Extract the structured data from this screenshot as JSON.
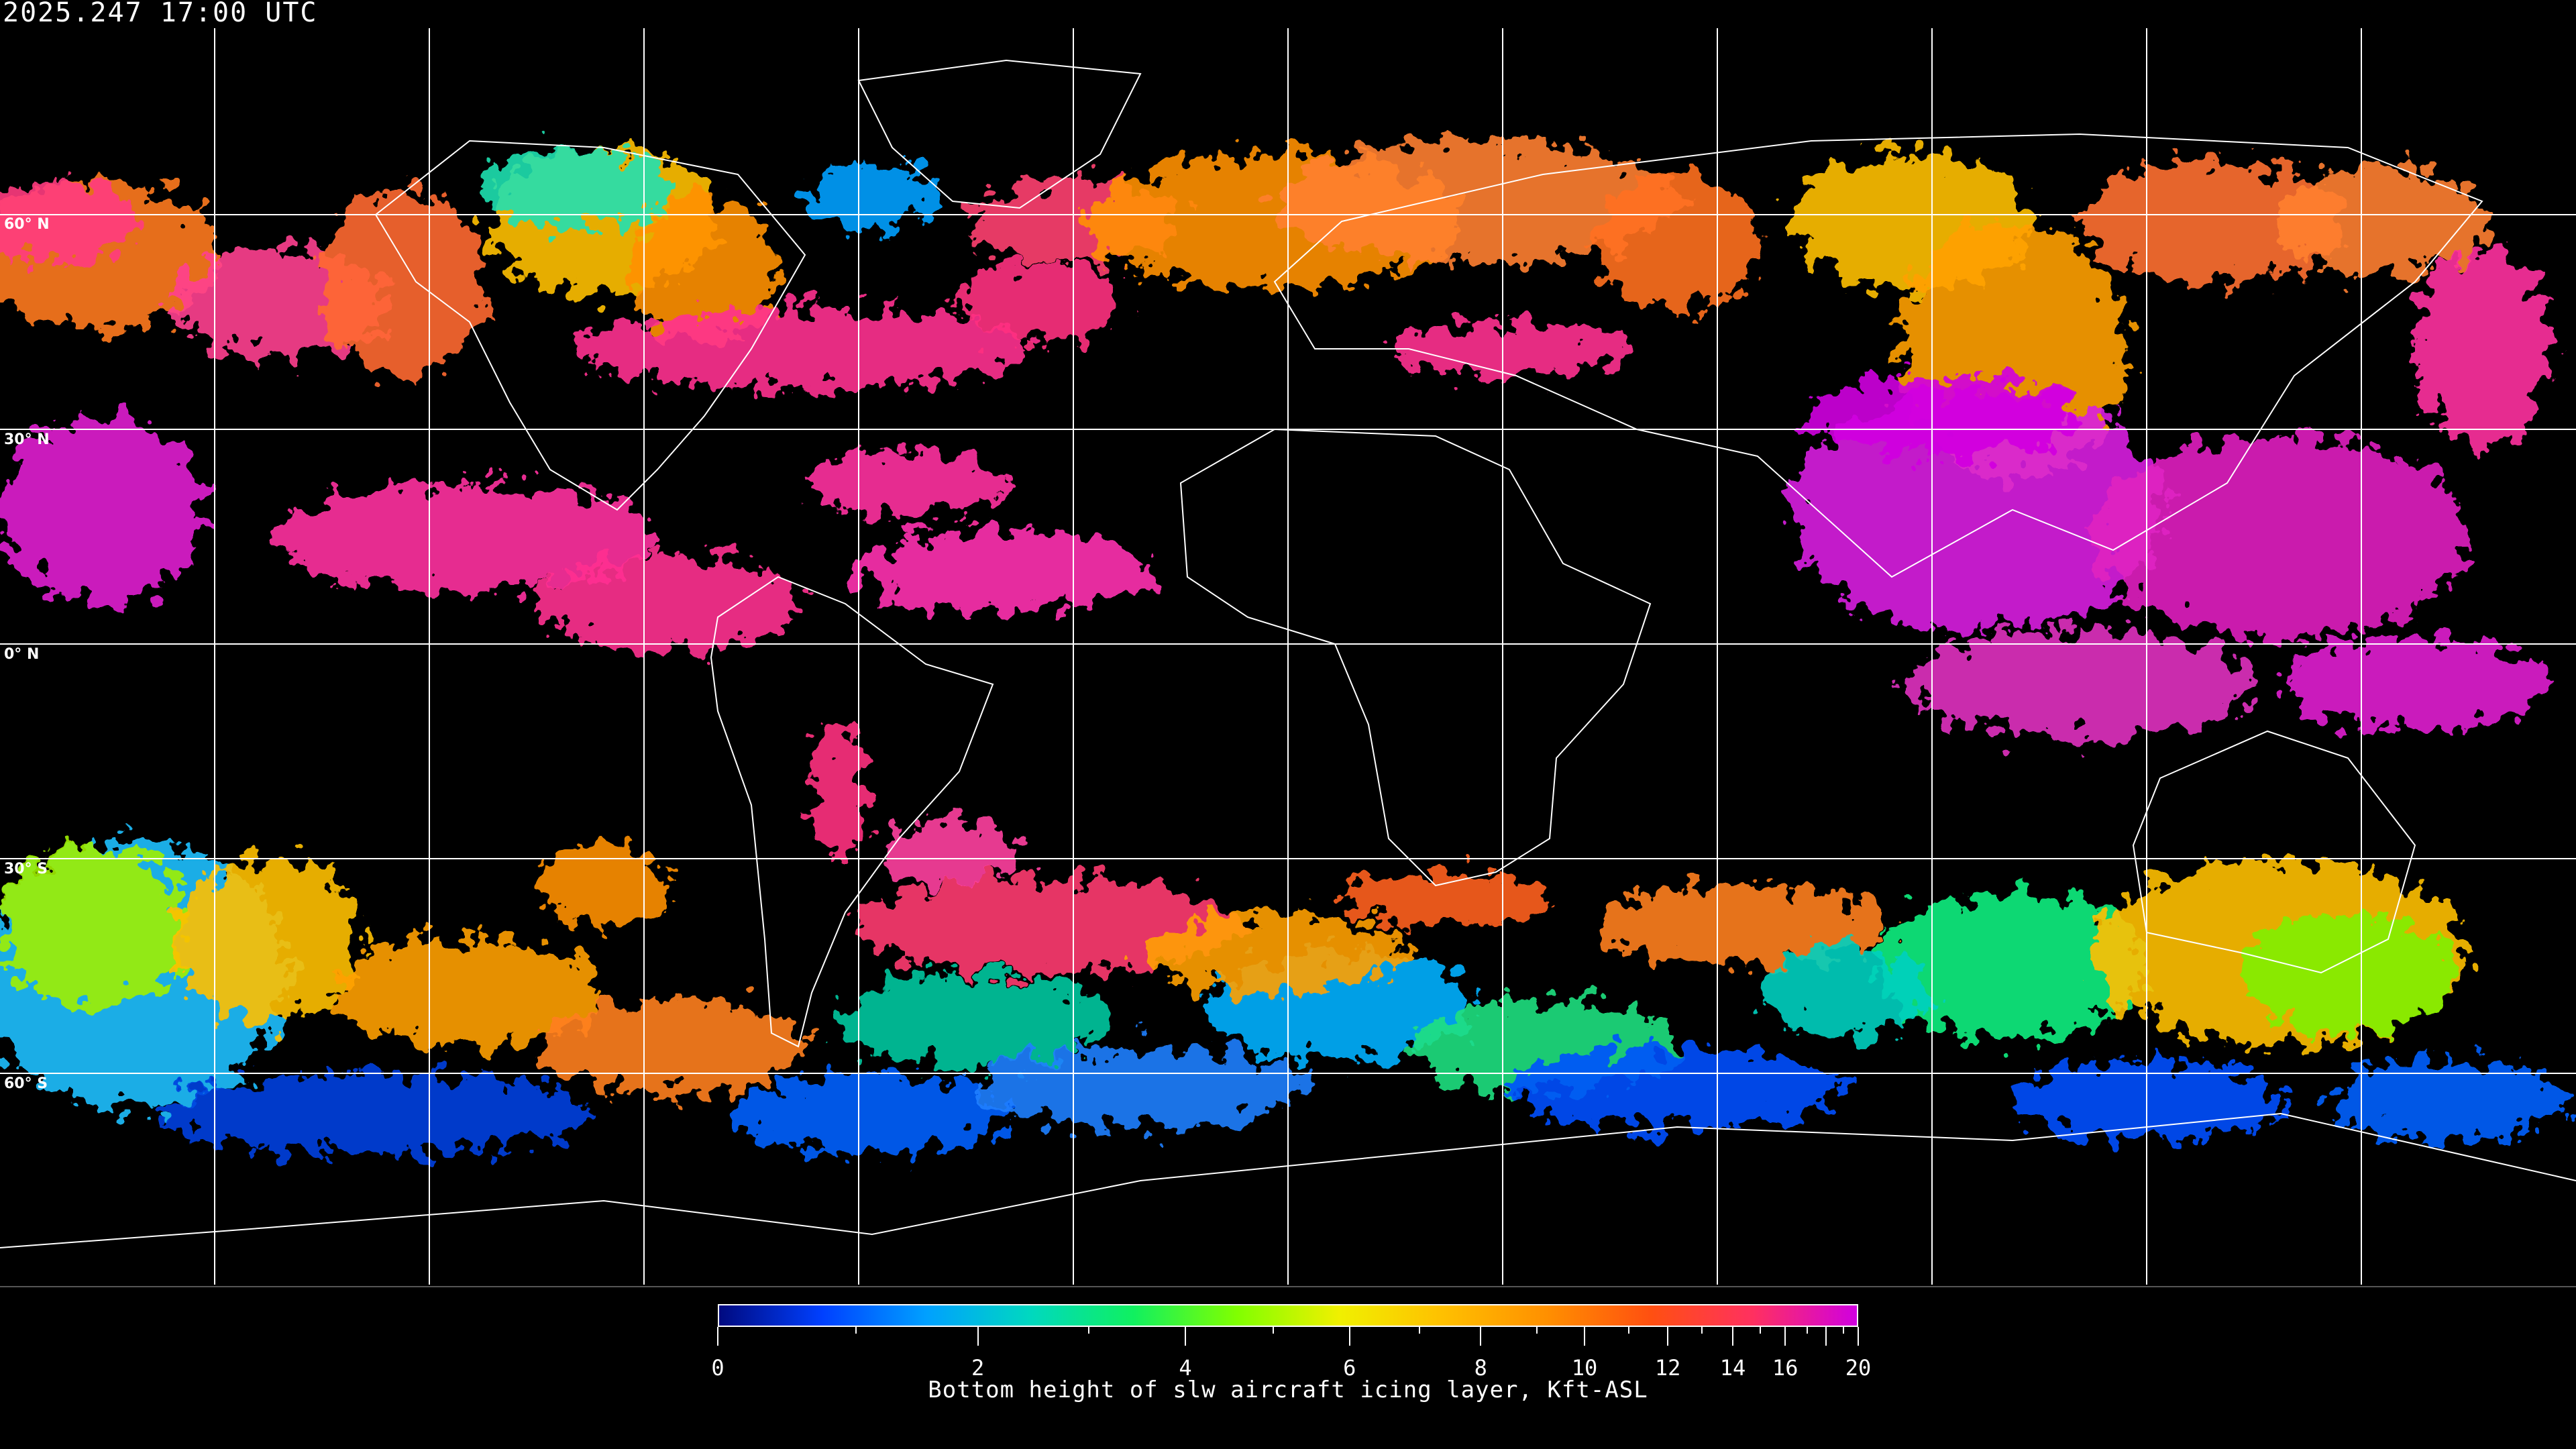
{
  "header": {
    "timestamp": "2025.247 17:00 UTC"
  },
  "map": {
    "projection": "equirectangular",
    "grid_longitude_step_deg": 30,
    "grid_latitude_step_deg": 30,
    "latitude_labels": [
      "60° N",
      "30° N",
      "0° N",
      "30° S",
      "60° S"
    ],
    "grid_color": "#ffffff",
    "coastline_color": "#ffffff",
    "background_color": "#000000"
  },
  "colorbar": {
    "title": "Bottom height of slw aircraft icing layer, Kft-ASL",
    "tick_labels": [
      "0",
      "2",
      "4",
      "6",
      "8",
      "10",
      "12",
      "14",
      "16",
      "20"
    ],
    "range": [
      0,
      20
    ],
    "colormap_stops": [
      "#000a80",
      "#0040ff",
      "#00a0ff",
      "#00d8c0",
      "#10f060",
      "#80ff00",
      "#f0f000",
      "#ffc000",
      "#ff9000",
      "#ff5010",
      "#ff3060",
      "#d000e0"
    ]
  }
}
